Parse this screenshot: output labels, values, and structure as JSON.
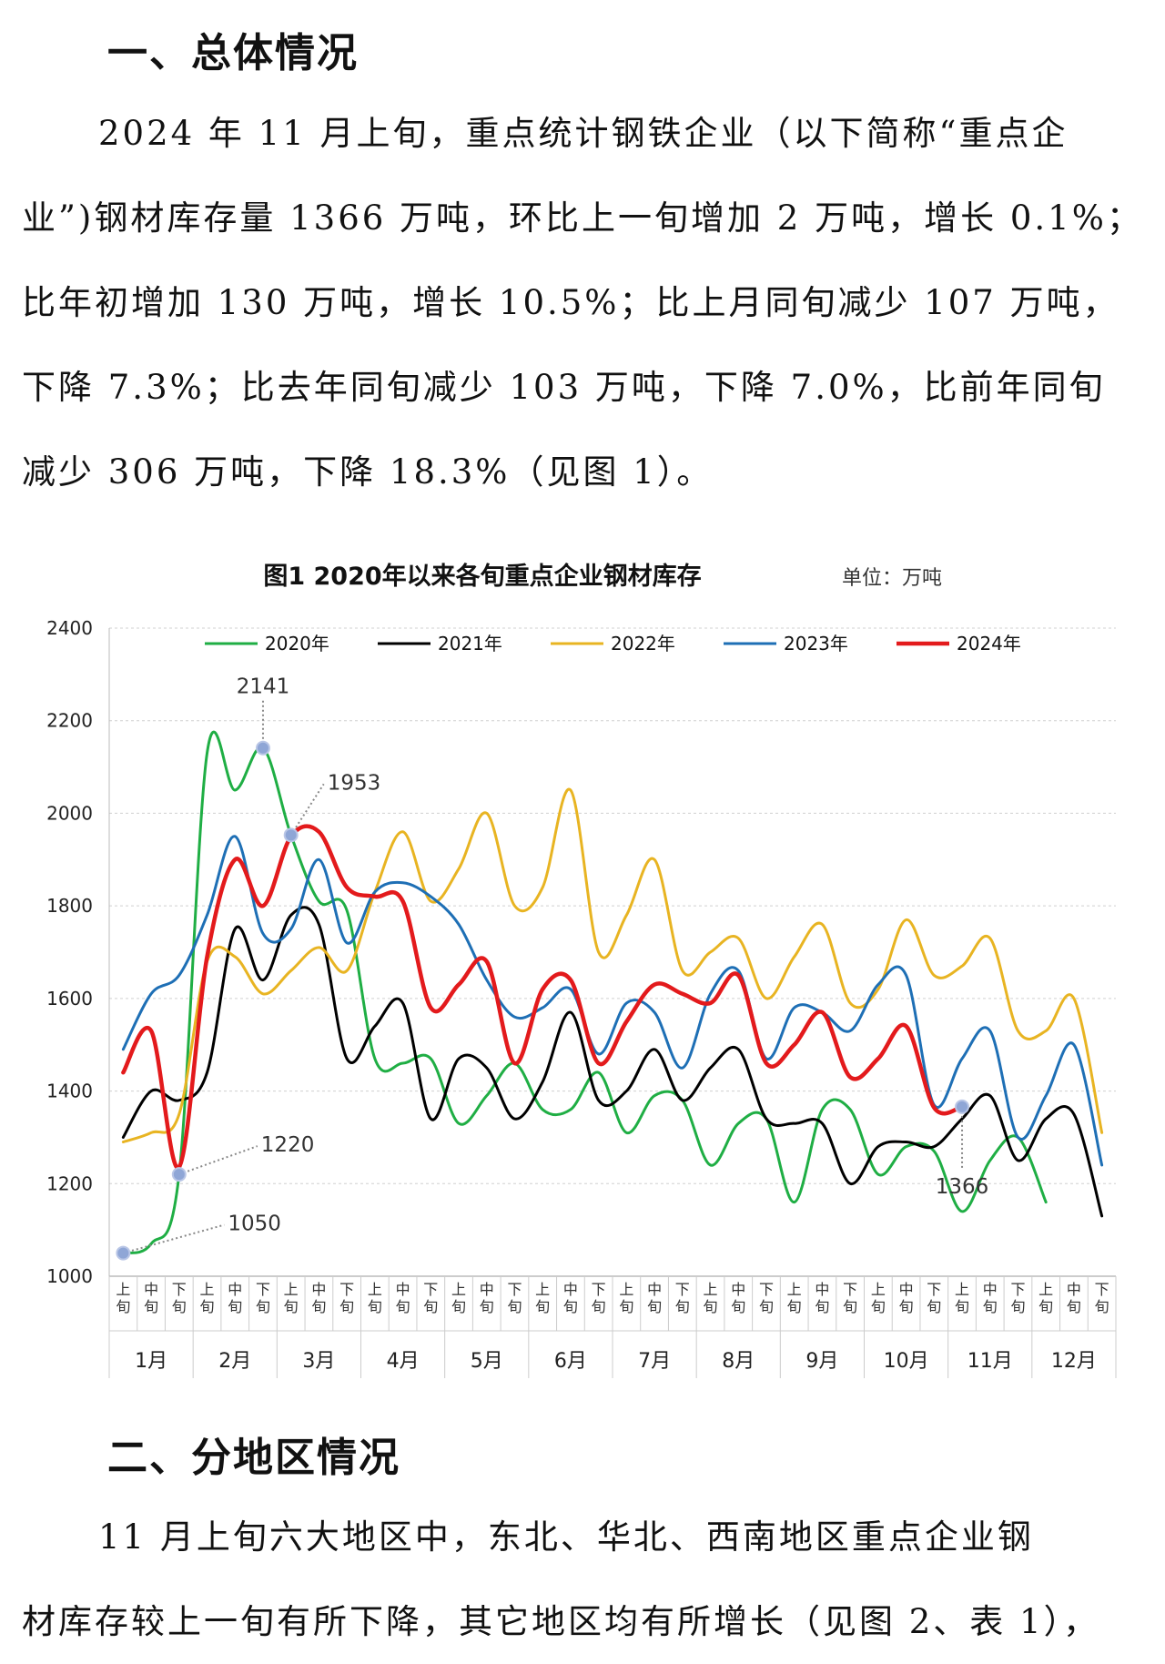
{
  "section1": {
    "heading": "一、总体情况",
    "lines": [
      "2024 年 11 月上旬，重点统计钢铁企业（以下简称“重点企",
      "业”)钢材库存量 1366 万吨，环比上一旬增加 2 万吨，增长 0.1%；",
      "比年初增加 130 万吨，增长 10.5%；比上月同旬减少 107 万吨，",
      "下降 7.3%；比去年同旬减少 103 万吨，下降 7.0%，比前年同旬",
      "减少 306 万吨，下降 18.3%（见图 1）。"
    ]
  },
  "section2": {
    "heading": "二、分地区情况",
    "lines": [
      "11 月上旬六大地区中，东北、华北、西南地区重点企业钢",
      "材库存较上一旬有所下降，其它地区均有所增长（见图 2、表 1），"
    ]
  },
  "chart_data": {
    "type": "line",
    "title": "图1  2020年以来各旬重点企业钢材库存",
    "unit": "单位：万吨",
    "ylim": [
      1000,
      2400
    ],
    "yticks": [
      1000,
      1200,
      1400,
      1600,
      1800,
      2000,
      2200,
      2400
    ],
    "grid": true,
    "legend_position": "top",
    "period_labels": [
      "上旬",
      "中旬",
      "下旬"
    ],
    "months": [
      "1月",
      "2月",
      "3月",
      "4月",
      "5月",
      "6月",
      "7月",
      "8月",
      "9月",
      "10月",
      "11月",
      "12月"
    ],
    "series": [
      {
        "name": "2020年",
        "color": "#1fae44",
        "values": [
          1050,
          1070,
          1220,
          2130,
          2050,
          2141,
          1953,
          1810,
          1790,
          1470,
          1460,
          1470,
          1330,
          1390,
          1460,
          1360,
          1360,
          1440,
          1310,
          1390,
          1380,
          1240,
          1330,
          1340,
          1160,
          1360,
          1360,
          1220,
          1280,
          1270,
          1140,
          1250,
          1300,
          1160
        ]
      },
      {
        "name": "2021年",
        "color": "#000000",
        "values": [
          1300,
          1400,
          1380,
          1440,
          1750,
          1640,
          1780,
          1760,
          1470,
          1540,
          1590,
          1340,
          1470,
          1450,
          1340,
          1420,
          1570,
          1380,
          1400,
          1490,
          1380,
          1450,
          1490,
          1340,
          1330,
          1330,
          1200,
          1280,
          1290,
          1280,
          1340,
          1390,
          1250,
          1340,
          1350,
          1130
        ]
      },
      {
        "name": "2022年",
        "color": "#e8b422",
        "values": [
          1290,
          1310,
          1350,
          1680,
          1690,
          1610,
          1660,
          1710,
          1660,
          1830,
          1960,
          1810,
          1880,
          2000,
          1800,
          1840,
          2050,
          1700,
          1780,
          1900,
          1660,
          1700,
          1730,
          1600,
          1690,
          1760,
          1590,
          1620,
          1770,
          1650,
          1670,
          1730,
          1530,
          1530,
          1600,
          1310
        ]
      },
      {
        "name": "2023年",
        "color": "#1e6fb5",
        "values": [
          1490,
          1610,
          1650,
          1780,
          1950,
          1740,
          1750,
          1900,
          1720,
          1830,
          1850,
          1820,
          1760,
          1640,
          1560,
          1580,
          1620,
          1480,
          1590,
          1570,
          1450,
          1610,
          1660,
          1470,
          1580,
          1570,
          1530,
          1630,
          1650,
          1370,
          1470,
          1530,
          1300,
          1390,
          1500,
          1240
        ]
      },
      {
        "name": "2024年",
        "color": "#e31a1c",
        "values": [
          1440,
          1530,
          1236,
          1690,
          1900,
          1800,
          1950,
          1960,
          1840,
          1820,
          1810,
          1580,
          1630,
          1680,
          1460,
          1620,
          1640,
          1460,
          1550,
          1630,
          1610,
          1590,
          1650,
          1460,
          1500,
          1570,
          1430,
          1470,
          1540,
          1364,
          1366
        ]
      }
    ],
    "annotations": [
      {
        "label": "2141",
        "series": 0,
        "index": 5
      },
      {
        "label": "1953",
        "series": 0,
        "index": 6
      },
      {
        "label": "1220",
        "series": 0,
        "index": 2
      },
      {
        "label": "1050",
        "series": 0,
        "index": 0
      },
      {
        "label": "1366",
        "series": 4,
        "index": 30
      }
    ]
  }
}
